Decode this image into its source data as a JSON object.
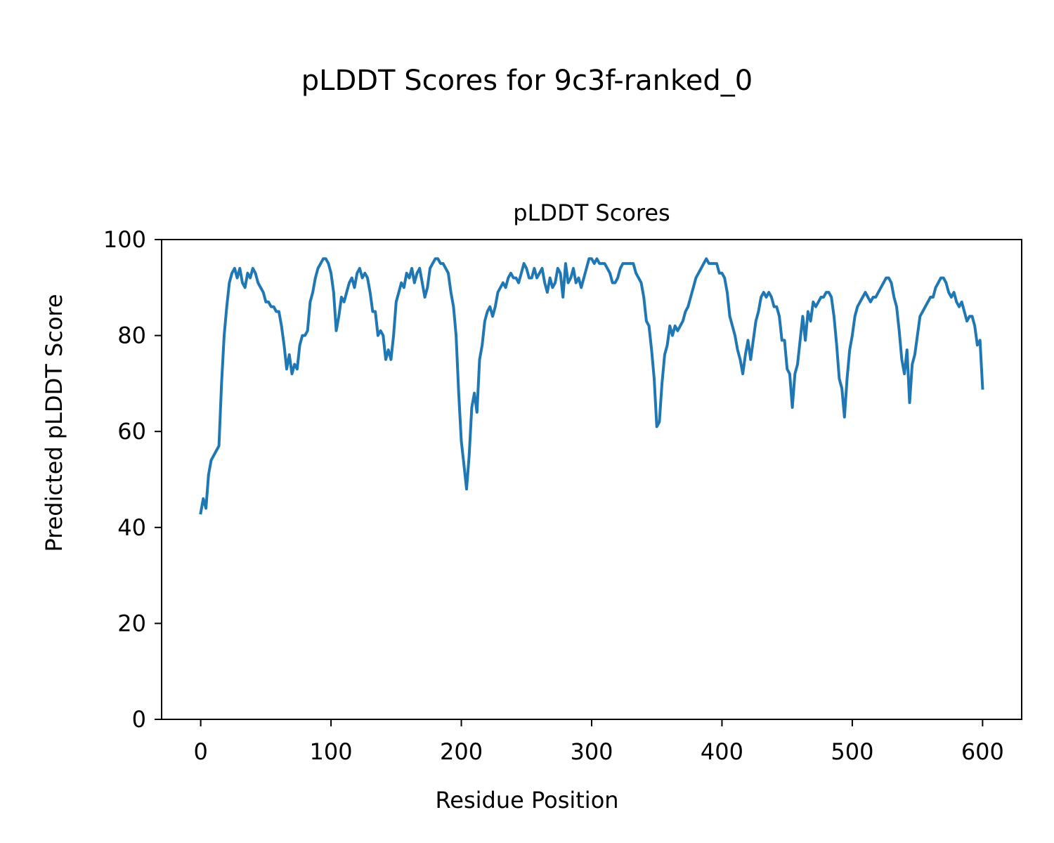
{
  "figure": {
    "suptitle": "pLDDT Scores for 9c3f-ranked_0"
  },
  "chart_data": {
    "type": "line",
    "title": "pLDDT Scores",
    "xlabel": "Residue Position",
    "ylabel": "Predicted pLDDT Score",
    "xlim": [
      -30,
      630
    ],
    "ylim": [
      0,
      100
    ],
    "x_ticks": [
      0,
      100,
      200,
      300,
      400,
      500,
      600
    ],
    "y_ticks": [
      0,
      20,
      40,
      60,
      80,
      100
    ],
    "grid": false,
    "legend": "none",
    "series": [
      {
        "color": "#1f77b4",
        "points": [
          [
            0,
            43
          ],
          [
            2,
            46
          ],
          [
            4,
            44
          ],
          [
            6,
            51
          ],
          [
            8,
            54
          ],
          [
            10,
            55
          ],
          [
            12,
            56
          ],
          [
            14,
            57
          ],
          [
            16,
            70
          ],
          [
            18,
            80
          ],
          [
            20,
            86
          ],
          [
            22,
            91
          ],
          [
            24,
            93
          ],
          [
            26,
            94
          ],
          [
            28,
            92
          ],
          [
            30,
            94
          ],
          [
            32,
            91
          ],
          [
            34,
            90
          ],
          [
            36,
            93
          ],
          [
            38,
            92
          ],
          [
            40,
            94
          ],
          [
            42,
            93
          ],
          [
            44,
            91
          ],
          [
            46,
            90
          ],
          [
            48,
            89
          ],
          [
            50,
            87
          ],
          [
            52,
            87
          ],
          [
            54,
            86
          ],
          [
            56,
            86
          ],
          [
            58,
            85
          ],
          [
            60,
            85
          ],
          [
            62,
            82
          ],
          [
            64,
            78
          ],
          [
            66,
            73
          ],
          [
            68,
            76
          ],
          [
            70,
            72
          ],
          [
            72,
            74
          ],
          [
            74,
            73
          ],
          [
            76,
            78
          ],
          [
            78,
            80
          ],
          [
            80,
            80
          ],
          [
            82,
            81
          ],
          [
            84,
            87
          ],
          [
            86,
            89
          ],
          [
            88,
            92
          ],
          [
            90,
            94
          ],
          [
            92,
            95
          ],
          [
            94,
            96
          ],
          [
            96,
            96
          ],
          [
            98,
            95
          ],
          [
            100,
            93
          ],
          [
            102,
            89
          ],
          [
            104,
            81
          ],
          [
            106,
            84
          ],
          [
            108,
            88
          ],
          [
            110,
            87
          ],
          [
            112,
            89
          ],
          [
            114,
            91
          ],
          [
            116,
            92
          ],
          [
            118,
            90
          ],
          [
            120,
            93
          ],
          [
            122,
            94
          ],
          [
            124,
            92
          ],
          [
            126,
            93
          ],
          [
            128,
            92
          ],
          [
            130,
            89
          ],
          [
            132,
            85
          ],
          [
            134,
            85
          ],
          [
            136,
            80
          ],
          [
            138,
            81
          ],
          [
            140,
            80
          ],
          [
            142,
            75
          ],
          [
            144,
            77
          ],
          [
            146,
            75
          ],
          [
            148,
            80
          ],
          [
            150,
            87
          ],
          [
            152,
            89
          ],
          [
            154,
            91
          ],
          [
            156,
            90
          ],
          [
            158,
            93
          ],
          [
            160,
            92
          ],
          [
            162,
            94
          ],
          [
            164,
            91
          ],
          [
            166,
            93
          ],
          [
            168,
            94
          ],
          [
            170,
            91
          ],
          [
            172,
            88
          ],
          [
            174,
            90
          ],
          [
            176,
            94
          ],
          [
            178,
            95
          ],
          [
            180,
            96
          ],
          [
            182,
            96
          ],
          [
            184,
            95
          ],
          [
            186,
            95
          ],
          [
            188,
            94
          ],
          [
            190,
            93
          ],
          [
            192,
            89
          ],
          [
            194,
            86
          ],
          [
            196,
            80
          ],
          [
            198,
            68
          ],
          [
            200,
            58
          ],
          [
            202,
            53
          ],
          [
            204,
            48
          ],
          [
            206,
            55
          ],
          [
            208,
            65
          ],
          [
            210,
            68
          ],
          [
            212,
            64
          ],
          [
            214,
            75
          ],
          [
            216,
            78
          ],
          [
            218,
            83
          ],
          [
            220,
            85
          ],
          [
            222,
            86
          ],
          [
            224,
            84
          ],
          [
            226,
            86
          ],
          [
            228,
            89
          ],
          [
            230,
            90
          ],
          [
            232,
            91
          ],
          [
            234,
            90
          ],
          [
            236,
            92
          ],
          [
            238,
            93
          ],
          [
            240,
            92
          ],
          [
            242,
            92
          ],
          [
            244,
            91
          ],
          [
            246,
            93
          ],
          [
            248,
            95
          ],
          [
            250,
            94
          ],
          [
            252,
            92
          ],
          [
            254,
            92
          ],
          [
            256,
            94
          ],
          [
            258,
            92
          ],
          [
            260,
            93
          ],
          [
            262,
            94
          ],
          [
            264,
            91
          ],
          [
            266,
            89
          ],
          [
            268,
            92
          ],
          [
            270,
            90
          ],
          [
            272,
            91
          ],
          [
            274,
            94
          ],
          [
            276,
            93
          ],
          [
            278,
            88
          ],
          [
            280,
            95
          ],
          [
            282,
            91
          ],
          [
            284,
            92
          ],
          [
            286,
            94
          ],
          [
            288,
            91
          ],
          [
            290,
            92
          ],
          [
            292,
            90
          ],
          [
            294,
            92
          ],
          [
            296,
            94
          ],
          [
            298,
            96
          ],
          [
            300,
            96
          ],
          [
            302,
            95
          ],
          [
            304,
            96
          ],
          [
            306,
            95
          ],
          [
            308,
            95
          ],
          [
            310,
            95
          ],
          [
            312,
            94
          ],
          [
            314,
            93
          ],
          [
            316,
            91
          ],
          [
            318,
            91
          ],
          [
            320,
            92
          ],
          [
            322,
            94
          ],
          [
            324,
            95
          ],
          [
            326,
            95
          ],
          [
            328,
            95
          ],
          [
            330,
            95
          ],
          [
            332,
            95
          ],
          [
            334,
            93
          ],
          [
            336,
            92
          ],
          [
            338,
            91
          ],
          [
            340,
            88
          ],
          [
            342,
            83
          ],
          [
            344,
            82
          ],
          [
            346,
            77
          ],
          [
            348,
            71
          ],
          [
            350,
            61
          ],
          [
            352,
            62
          ],
          [
            354,
            70
          ],
          [
            356,
            76
          ],
          [
            358,
            78
          ],
          [
            360,
            82
          ],
          [
            362,
            80
          ],
          [
            364,
            82
          ],
          [
            366,
            81
          ],
          [
            368,
            82
          ],
          [
            370,
            83
          ],
          [
            372,
            85
          ],
          [
            374,
            86
          ],
          [
            376,
            88
          ],
          [
            378,
            90
          ],
          [
            380,
            92
          ],
          [
            382,
            93
          ],
          [
            384,
            94
          ],
          [
            386,
            95
          ],
          [
            388,
            96
          ],
          [
            390,
            95
          ],
          [
            392,
            95
          ],
          [
            394,
            95
          ],
          [
            396,
            95
          ],
          [
            398,
            93
          ],
          [
            400,
            93
          ],
          [
            402,
            92
          ],
          [
            404,
            89
          ],
          [
            406,
            84
          ],
          [
            408,
            82
          ],
          [
            410,
            80
          ],
          [
            412,
            77
          ],
          [
            414,
            75
          ],
          [
            416,
            72
          ],
          [
            418,
            76
          ],
          [
            420,
            79
          ],
          [
            422,
            75
          ],
          [
            424,
            79
          ],
          [
            426,
            83
          ],
          [
            428,
            85
          ],
          [
            430,
            88
          ],
          [
            432,
            89
          ],
          [
            434,
            88
          ],
          [
            436,
            89
          ],
          [
            438,
            88
          ],
          [
            440,
            86
          ],
          [
            442,
            86
          ],
          [
            444,
            84
          ],
          [
            446,
            79
          ],
          [
            448,
            79
          ],
          [
            450,
            73
          ],
          [
            452,
            72
          ],
          [
            454,
            65
          ],
          [
            456,
            72
          ],
          [
            458,
            74
          ],
          [
            460,
            79
          ],
          [
            462,
            84
          ],
          [
            464,
            79
          ],
          [
            466,
            85
          ],
          [
            468,
            83
          ],
          [
            470,
            87
          ],
          [
            472,
            86
          ],
          [
            474,
            87
          ],
          [
            476,
            88
          ],
          [
            478,
            88
          ],
          [
            480,
            89
          ],
          [
            482,
            89
          ],
          [
            484,
            88
          ],
          [
            486,
            84
          ],
          [
            488,
            78
          ],
          [
            490,
            71
          ],
          [
            492,
            69
          ],
          [
            494,
            63
          ],
          [
            496,
            71
          ],
          [
            498,
            77
          ],
          [
            500,
            80
          ],
          [
            502,
            84
          ],
          [
            504,
            86
          ],
          [
            506,
            87
          ],
          [
            508,
            88
          ],
          [
            510,
            89
          ],
          [
            512,
            88
          ],
          [
            514,
            87
          ],
          [
            516,
            88
          ],
          [
            518,
            88
          ],
          [
            520,
            89
          ],
          [
            522,
            90
          ],
          [
            524,
            91
          ],
          [
            526,
            92
          ],
          [
            528,
            92
          ],
          [
            530,
            91
          ],
          [
            532,
            88
          ],
          [
            534,
            86
          ],
          [
            536,
            81
          ],
          [
            538,
            75
          ],
          [
            540,
            72
          ],
          [
            542,
            77
          ],
          [
            544,
            66
          ],
          [
            546,
            74
          ],
          [
            548,
            76
          ],
          [
            550,
            80
          ],
          [
            552,
            84
          ],
          [
            554,
            85
          ],
          [
            556,
            86
          ],
          [
            558,
            87
          ],
          [
            560,
            88
          ],
          [
            562,
            88
          ],
          [
            564,
            90
          ],
          [
            566,
            91
          ],
          [
            568,
            92
          ],
          [
            570,
            92
          ],
          [
            572,
            91
          ],
          [
            574,
            89
          ],
          [
            576,
            88
          ],
          [
            578,
            89
          ],
          [
            580,
            87
          ],
          [
            582,
            86
          ],
          [
            584,
            87
          ],
          [
            586,
            85
          ],
          [
            588,
            83
          ],
          [
            590,
            84
          ],
          [
            592,
            84
          ],
          [
            594,
            82
          ],
          [
            596,
            78
          ],
          [
            598,
            79
          ],
          [
            600,
            69
          ]
        ]
      }
    ]
  }
}
